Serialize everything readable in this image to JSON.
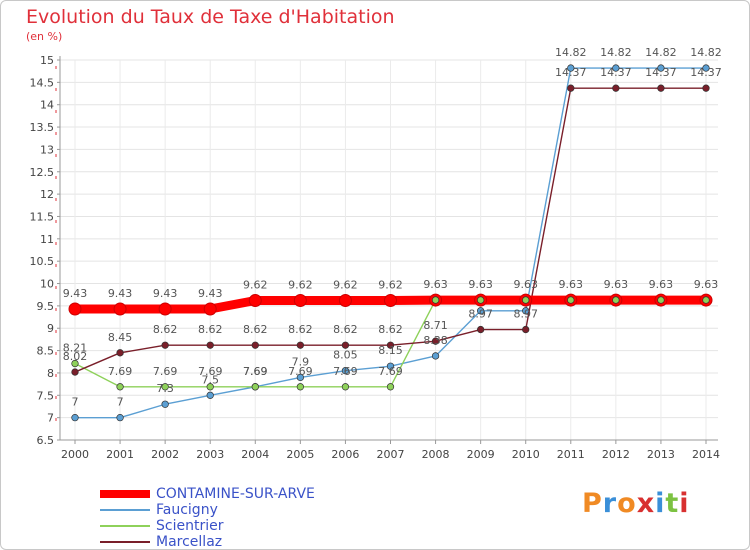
{
  "header": {
    "title": "Evolution du Taux de Taxe d'Habitation",
    "unit": "(en %)"
  },
  "logo": {
    "letters": [
      "P",
      "r",
      "o",
      "x",
      "i",
      "t",
      "i"
    ],
    "colors": [
      "#f08a24",
      "#3a8fd8",
      "#f08a24",
      "#d83030",
      "#3a8fd8",
      "#7cc242",
      "#d83030"
    ]
  },
  "chart_data": {
    "type": "line",
    "categories": [
      "2000",
      "2001",
      "2002",
      "2003",
      "2004",
      "2005",
      "2006",
      "2007",
      "2008",
      "2009",
      "2010",
      "2011",
      "2012",
      "2013",
      "2014"
    ],
    "ylim": [
      6.5,
      15
    ],
    "yticks": [
      "6.5",
      "7",
      "7.5",
      "8",
      "8.5",
      "9",
      "9.5",
      "10",
      "10.5",
      "11",
      "11.5",
      "12",
      "12.5",
      "13",
      "13.5",
      "14",
      "14.5",
      "15"
    ],
    "grid": true,
    "legend_position": "bottom-left",
    "series": [
      {
        "name": "CONTAMINE-SUR-ARVE",
        "color": "#ff0000",
        "values": [
          9.43,
          9.43,
          9.43,
          9.43,
          9.62,
          9.62,
          9.62,
          9.62,
          9.63,
          9.63,
          9.63,
          9.63,
          9.63,
          9.63,
          9.63
        ],
        "labels": [
          "9.43",
          "9.43",
          "9.43",
          "9.43",
          "9.62",
          "9.62",
          "9.62",
          "9.62",
          "9.63",
          "9.63",
          "9.63",
          "9.63",
          "9.63",
          "9.63",
          "9.63"
        ]
      },
      {
        "name": "Faucigny",
        "color": "#5b9fd3",
        "values": [
          7,
          7,
          7.3,
          7.5,
          7.69,
          7.9,
          8.05,
          8.15,
          8.38,
          9.39,
          9.39,
          14.82,
          14.82,
          14.82,
          14.82
        ],
        "labels": [
          "7",
          "7",
          "7.3",
          "7.5",
          "7.69",
          "7.9",
          "8.05",
          "8.15",
          "8.38",
          "",
          "",
          "14.82",
          "14.82",
          "14.82",
          "14.82"
        ]
      },
      {
        "name": "Scientrier",
        "color": "#8ed15a",
        "values": [
          8.21,
          7.69,
          7.69,
          7.69,
          7.69,
          7.69,
          7.69,
          7.69,
          9.63,
          9.63,
          9.63,
          9.63,
          9.63,
          9.63,
          9.63
        ],
        "labels": [
          "8.21",
          "7.69",
          "7.69",
          "7.69",
          "7.69",
          "7.69",
          "7.69",
          "7.69",
          "",
          "",
          "",
          "",
          "",
          "",
          ""
        ]
      },
      {
        "name": "Marcellaz",
        "color": "#7a1f2a",
        "values": [
          8.02,
          8.45,
          8.62,
          8.62,
          8.62,
          8.62,
          8.62,
          8.62,
          8.71,
          8.97,
          8.97,
          14.37,
          14.37,
          14.37,
          14.37
        ],
        "labels": [
          "8.02",
          "8.45",
          "8.62",
          "8.62",
          "8.62",
          "8.62",
          "8.62",
          "8.62",
          "8.71",
          "8.97",
          "8.97",
          "14.37",
          "14.37",
          "14.37",
          "14.37"
        ]
      }
    ]
  }
}
